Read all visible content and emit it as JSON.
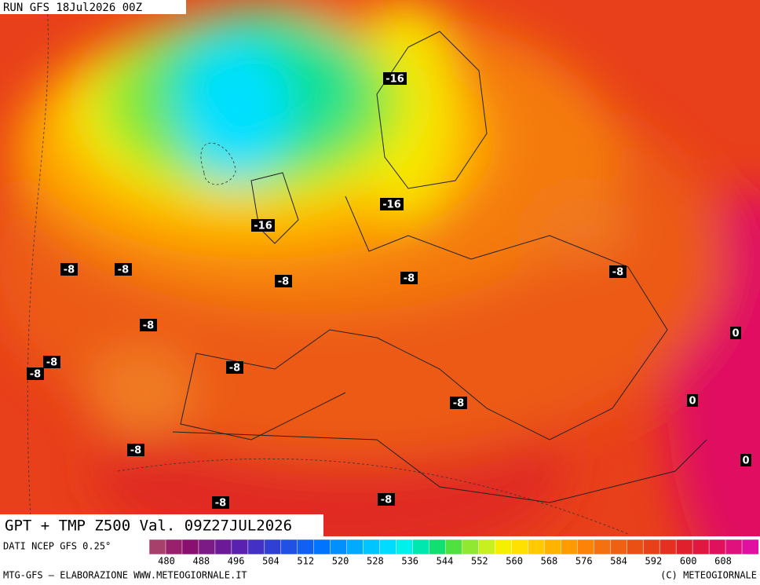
{
  "run": "RUN GFS 18Jul2026 00Z",
  "title": "GPT + TMP Z500 Val. 09Z27JUL2026",
  "source": "DATI NCEP GFS 0.25°",
  "credit_left": "MTG-GFS — ELABORAZIONE WWW.METEOGIORNALE.IT",
  "credit_right": "(C) METEOGIORNALE",
  "map_labels": [
    "-16",
    "-16",
    "-16",
    "-8",
    "-8",
    "-8",
    "-8",
    "-8",
    "-8",
    "-8",
    "-8",
    "-8",
    "-8",
    "-8",
    "-8",
    "-8",
    "0",
    "0",
    "0"
  ],
  "colorbar": {
    "ticks": [
      480,
      488,
      496,
      504,
      512,
      520,
      528,
      536,
      544,
      552,
      560,
      568,
      576,
      584,
      592,
      600,
      608
    ],
    "colors": [
      "#a8406c",
      "#98206c",
      "#8a1070",
      "#7c1a86",
      "#6c1a98",
      "#5a20ae",
      "#4430c4",
      "#3040d4",
      "#2050e4",
      "#1060f4",
      "#0074ff",
      "#0090ff",
      "#00aaff",
      "#00c4ff",
      "#00dcff",
      "#00f0ec",
      "#00e8b0",
      "#10e070",
      "#50e040",
      "#90e830",
      "#c8f020",
      "#f4f000",
      "#ffe000",
      "#ffca00",
      "#ffb200",
      "#ff9a00",
      "#fc8208",
      "#f47010",
      "#ee6012",
      "#ea5014",
      "#e84018",
      "#e43020",
      "#e0202c",
      "#e01840",
      "#e0105c",
      "#e0107c",
      "#e010a0"
    ]
  }
}
